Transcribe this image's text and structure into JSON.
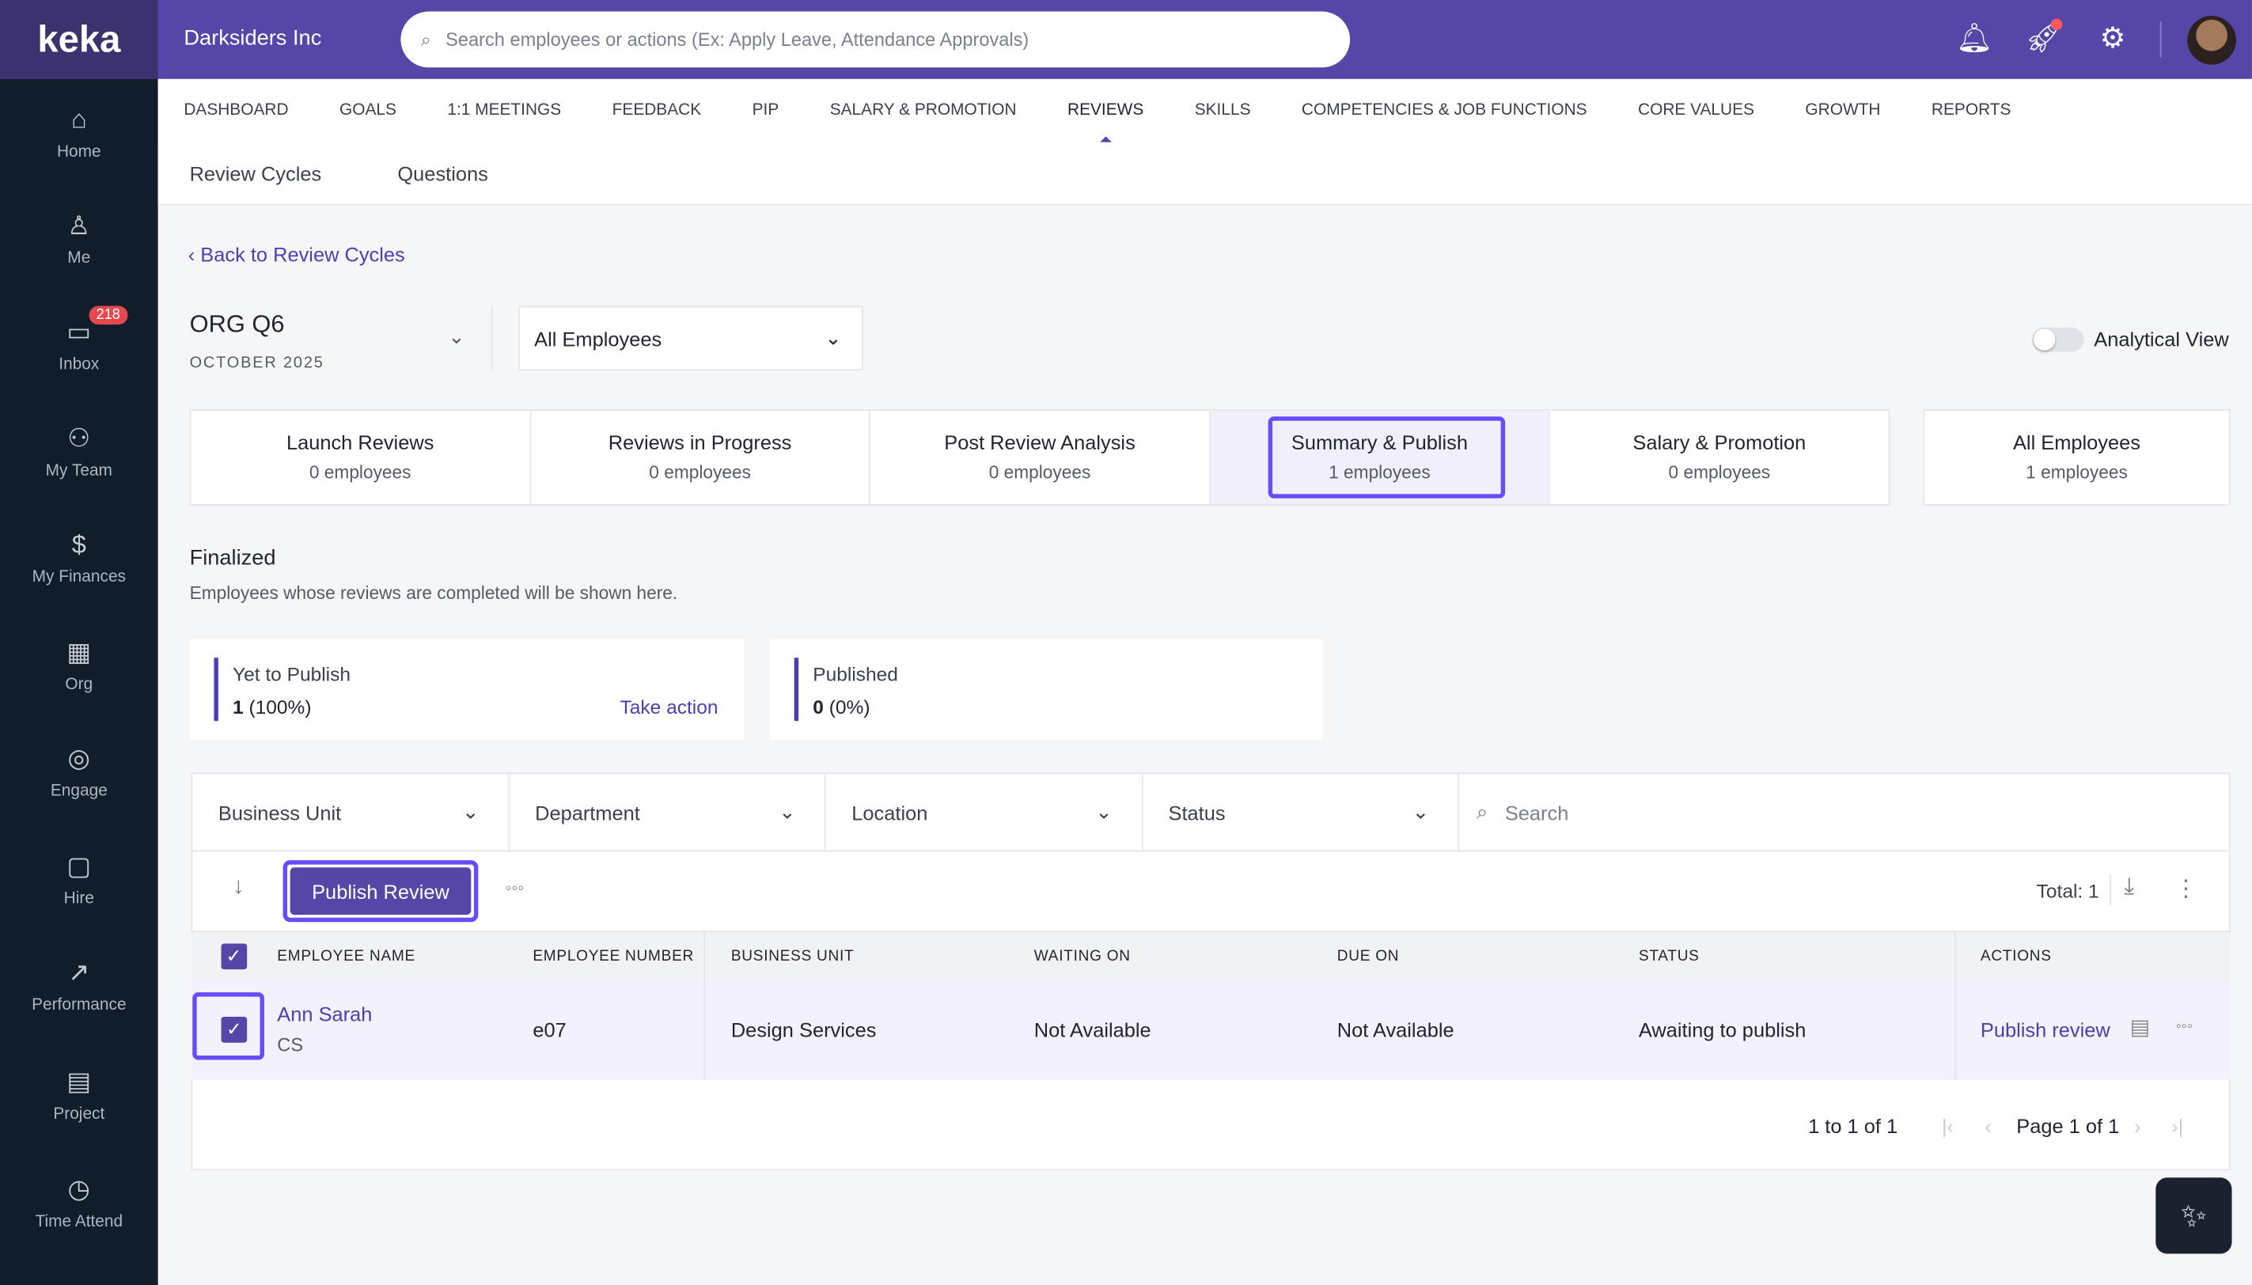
{
  "header": {
    "logo": "keka",
    "company": "Darksiders Inc",
    "search_placeholder": "Search employees or actions (Ex: Apply Leave, Attendance Approvals)",
    "icons": [
      "bell-icon",
      "rocket-icon",
      "gear-icon"
    ]
  },
  "sidebar": {
    "items": [
      {
        "label": "Home",
        "icon": "⌂"
      },
      {
        "label": "Me",
        "icon": "♙"
      },
      {
        "label": "Inbox",
        "icon": "▭",
        "badge": "218"
      },
      {
        "label": "My Team",
        "icon": "⚇"
      },
      {
        "label": "My Finances",
        "icon": "$"
      },
      {
        "label": "Org",
        "icon": "▦"
      },
      {
        "label": "Engage",
        "icon": "◎"
      },
      {
        "label": "Hire",
        "icon": "▢"
      },
      {
        "label": "Performance",
        "icon": "↗"
      },
      {
        "label": "Project",
        "icon": "▤"
      },
      {
        "label": "Time Attend",
        "icon": "◷"
      }
    ]
  },
  "nav": {
    "tabs": [
      "DASHBOARD",
      "GOALS",
      "1:1 MEETINGS",
      "FEEDBACK",
      "PIP",
      "SALARY & PROMOTION",
      "REVIEWS",
      "SKILLS",
      "COMPETENCIES & JOB FUNCTIONS",
      "CORE VALUES",
      "GROWTH",
      "REPORTS"
    ],
    "active": "REVIEWS"
  },
  "subnav": [
    "Review Cycles",
    "Questions"
  ],
  "back": "Back to Review Cycles",
  "cycle": {
    "name": "ORG Q6",
    "date": "OCTOBER 2025",
    "filter": "All Employees",
    "analytical_view": "Analytical View",
    "analytical_on": false
  },
  "stages": [
    {
      "title": "Launch Reviews",
      "count": "0 employees"
    },
    {
      "title": "Reviews in Progress",
      "count": "0 employees"
    },
    {
      "title": "Post Review Analysis",
      "count": "0 employees"
    },
    {
      "title": "Summary & Publish",
      "count": "1 employees",
      "active": true
    },
    {
      "title": "Salary & Promotion",
      "count": "0 employees"
    }
  ],
  "all_employees": {
    "title": "All Employees",
    "count": "1 employees"
  },
  "section": {
    "title": "Finalized",
    "desc": "Employees whose reviews are completed will be shown here."
  },
  "cards": {
    "yet": {
      "label": "Yet to Publish",
      "value": "1",
      "pct": "(100%)",
      "action": "Take action"
    },
    "pub": {
      "label": "Published",
      "value": "0",
      "pct": "(0%)"
    }
  },
  "filters": [
    "Business Unit",
    "Department",
    "Location",
    "Status"
  ],
  "search_placeholder": "Search",
  "toolbar": {
    "publish": "Publish Review",
    "total": "Total: 1"
  },
  "table": {
    "headers": [
      "EMPLOYEE NAME",
      "EMPLOYEE NUMBER",
      "BUSINESS UNIT",
      "WAITING ON",
      "DUE ON",
      "STATUS",
      "ACTIONS"
    ],
    "rows": [
      {
        "name": "Ann Sarah",
        "dept": "CS",
        "number": "e07",
        "unit": "Design Services",
        "waiting": "Not Available",
        "due": "Not Available",
        "status": "Awaiting to publish",
        "action": "Publish review"
      }
    ]
  },
  "pagination": {
    "range": "1 to 1 of 1",
    "page": "Page 1 of 1"
  },
  "colors": {
    "primary": "#5546a8",
    "highlight": "#6a4cff",
    "sidebar": "#111d2b"
  }
}
